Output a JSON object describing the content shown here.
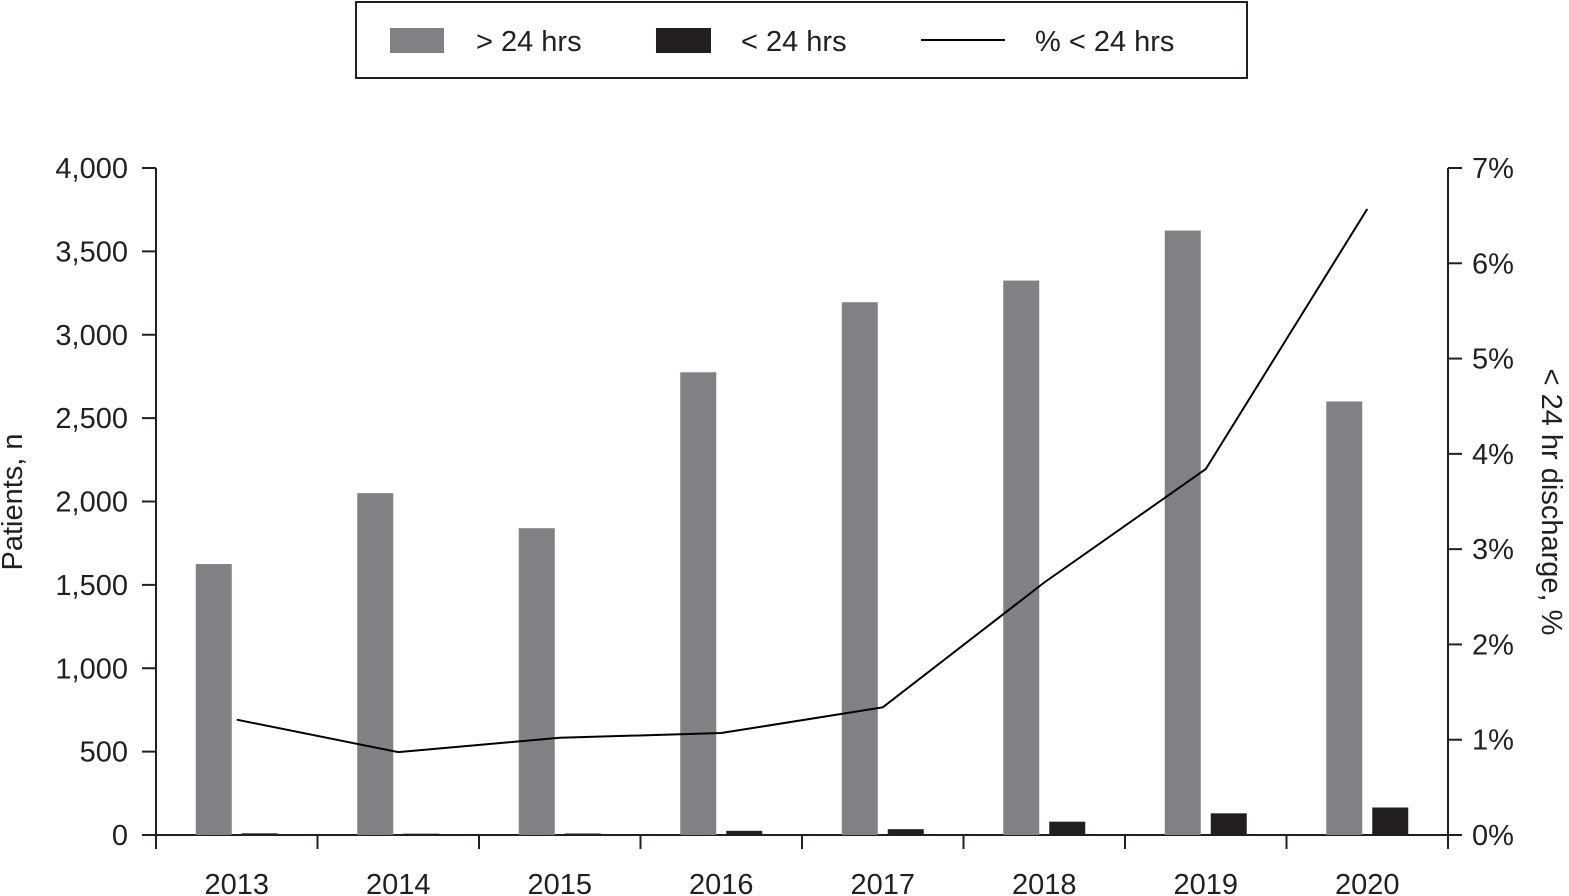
{
  "chart_data": {
    "type": "bar",
    "categories": [
      "2013",
      "2014",
      "2015",
      "2016",
      "2017",
      "2018",
      "2019",
      "2020"
    ],
    "series": [
      {
        "name": "> 24 hrs",
        "kind": "bar",
        "axis": "left",
        "color": "#808184",
        "values": [
          1625,
          2050,
          1840,
          2775,
          3195,
          3325,
          3625,
          2600
        ]
      },
      {
        "name": "< 24 hrs",
        "kind": "bar",
        "axis": "left",
        "color": "#231f20",
        "values": [
          10,
          8,
          9,
          25,
          35,
          80,
          130,
          165
        ]
      },
      {
        "name": "% < 24 hrs",
        "kind": "line",
        "axis": "right",
        "color": "#000000",
        "values": [
          1.21,
          0.87,
          1.02,
          1.07,
          1.34,
          2.65,
          3.84,
          6.57
        ]
      }
    ],
    "left_axis": {
      "label": "Patients, n",
      "ticks": [
        "0",
        "500",
        "1,000",
        "1,500",
        "2,000",
        "2,500",
        "3,000",
        "3,500",
        "4,000"
      ],
      "ylim": [
        0,
        4000
      ]
    },
    "right_axis": {
      "label": "< 24 hr discharge, %",
      "ticks": [
        "0%",
        "1%",
        "2%",
        "3%",
        "4%",
        "5%",
        "6%",
        "7%"
      ],
      "ylim": [
        0,
        7
      ]
    },
    "grid": false,
    "legend_position": "top"
  }
}
